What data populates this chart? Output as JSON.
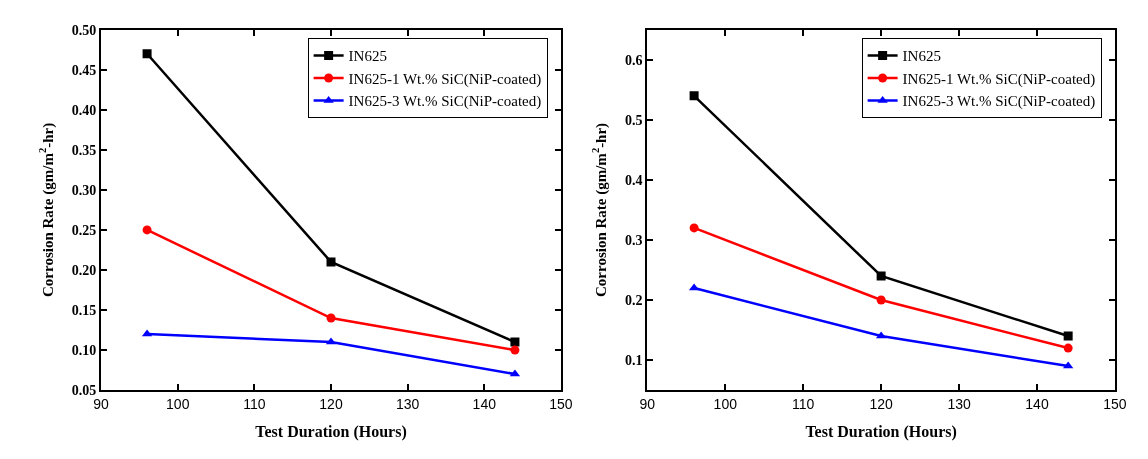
{
  "chart_data": [
    {
      "type": "line",
      "xlabel": "Test Duration (Hours)",
      "ylabel": "Corrosion Rate (gm/m$^{2}$-hr)",
      "x": [
        96,
        120,
        144
      ],
      "xlim": [
        90,
        150
      ],
      "xticks": [
        90,
        100,
        110,
        120,
        130,
        140,
        150
      ],
      "ylim": [
        0.05,
        0.5
      ],
      "yticks": [
        0.05,
        {
          "value": 0.1,
          "label": "0.10"
        },
        0.15,
        {
          "value": 0.2,
          "label": "0.20"
        },
        0.25,
        {
          "value": 0.3,
          "label": "0.30"
        },
        0.35,
        {
          "value": 0.4,
          "label": "0.40"
        },
        0.45,
        {
          "value": 0.5,
          "label": "0.50"
        }
      ],
      "legend": "top right",
      "line_style": "solid",
      "series": [
        {
          "name": "IN625",
          "color": "#000000",
          "marker": "square",
          "values": [
            0.47,
            0.21,
            0.11
          ]
        },
        {
          "name": "IN625-1 Wt.% SiC(NiP-coated)",
          "color": "#ff0000",
          "marker": "circle",
          "values": [
            0.25,
            0.14,
            0.1
          ]
        },
        {
          "name": "IN625-3 Wt.% SiC(NiP-coated)",
          "color": "#0000ff",
          "marker": "triangle",
          "values": [
            0.12,
            0.11,
            0.07
          ]
        }
      ]
    },
    {
      "type": "line",
      "xlabel": "Test Duration (Hours)",
      "ylabel": "Corrosion Rate (gm/m$^{2}$-hr)",
      "x": [
        96,
        120,
        144
      ],
      "xlim": [
        90,
        150
      ],
      "xticks": [
        90,
        100,
        110,
        120,
        130,
        140,
        150
      ],
      "ylim": [
        0.05,
        0.65
      ],
      "yticks": [
        0.1,
        0.2,
        0.3,
        0.4,
        0.5,
        0.6
      ],
      "legend": "top right",
      "line_style": "solid",
      "series": [
        {
          "name": "IN625",
          "color": "#000000",
          "marker": "square",
          "values": [
            0.54,
            0.24,
            0.14
          ]
        },
        {
          "name": "IN625-1 Wt.% SiC(NiP-coated)",
          "color": "#ff0000",
          "marker": "circle",
          "values": [
            0.32,
            0.2,
            0.12
          ]
        },
        {
          "name": "IN625-3 Wt.% SiC(NiP-coated)",
          "color": "#0000ff",
          "marker": "triangle",
          "values": [
            0.22,
            0.14,
            0.09
          ]
        }
      ]
    }
  ]
}
